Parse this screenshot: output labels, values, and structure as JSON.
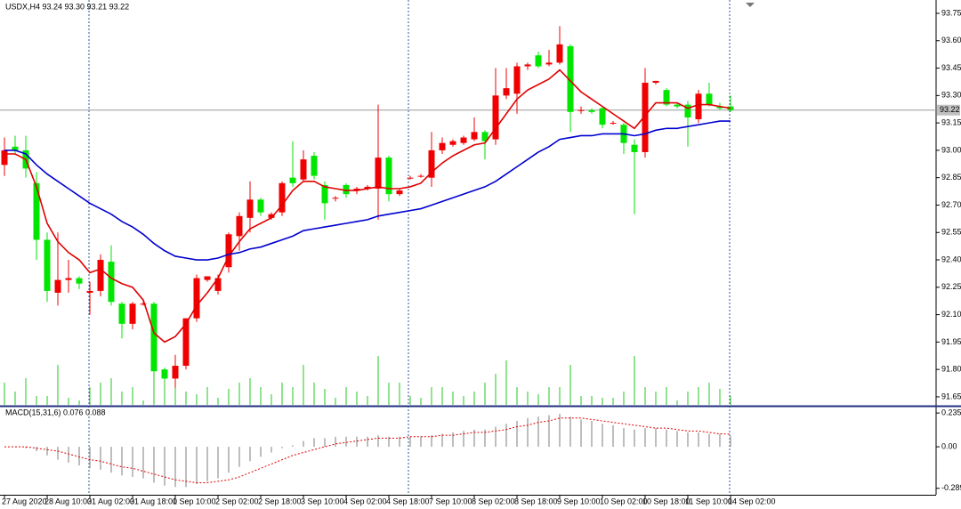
{
  "chart_data": {
    "type": "candlestick",
    "title": "USDX,H4  93.24 93.30 93.21 93.22",
    "categories": [
      "27 Aug 2020",
      null,
      null,
      null,
      "28 Aug 10:00",
      null,
      null,
      null,
      "31 Aug 02:00",
      null,
      null,
      null,
      "31 Aug 18:00",
      null,
      null,
      null,
      "1 Sep 10:00",
      null,
      null,
      null,
      "2 Sep 02:00",
      null,
      null,
      null,
      "2 Sep 18:00",
      null,
      null,
      null,
      "3 Sep 10:00",
      null,
      null,
      null,
      "4 Sep 02:00",
      null,
      null,
      null,
      "4 Sep 18:00",
      null,
      null,
      null,
      "7 Sep 10:00",
      null,
      null,
      null,
      "8 Sep 02:00",
      null,
      null,
      null,
      "8 Sep 18:00",
      null,
      null,
      null,
      "9 Sep 10:00",
      null,
      null,
      null,
      "10 Sep 02:00",
      null,
      null,
      null,
      "10 Sep 18:00",
      null,
      null,
      null,
      "11 Sep 10:00",
      null,
      null,
      null,
      "14 Sep 02:00"
    ],
    "open": [
      92.92,
      93.02,
      93.0,
      92.82,
      92.51,
      92.22,
      92.29,
      92.3,
      92.22,
      92.23,
      92.39,
      92.16,
      92.05,
      92.16,
      92.16,
      91.8,
      91.75,
      91.82,
      92.08,
      92.29,
      92.23,
      92.36,
      92.53,
      92.63,
      92.73,
      92.63,
      92.66,
      92.85,
      92.84,
      92.97,
      92.81,
      92.74,
      92.81,
      92.78,
      92.79,
      92.79,
      92.96,
      92.76,
      92.85,
      92.86,
      92.85,
      93.0,
      93.03,
      93.04,
      93.06,
      93.1,
      93.06,
      93.3,
      93.31,
      93.46,
      93.52,
      93.47,
      93.48,
      93.57,
      93.22,
      93.22,
      93.23,
      93.15,
      93.14,
      93.03,
      92.99,
      93.37,
      93.33,
      93.25,
      93.25,
      93.17,
      93.31,
      93.24,
      93.24
    ],
    "high": [
      93.07,
      93.08,
      93.08,
      92.88,
      92.55,
      92.55,
      92.4,
      92.31,
      92.28,
      92.43,
      92.48,
      92.17,
      92.17,
      92.17,
      92.17,
      91.81,
      91.88,
      92.08,
      92.32,
      92.31,
      92.32,
      92.55,
      92.66,
      92.83,
      92.74,
      92.66,
      92.83,
      93.05,
      93.0,
      92.99,
      92.83,
      92.75,
      92.82,
      92.8,
      92.81,
      93.25,
      92.97,
      92.79,
      92.86,
      92.87,
      93.1,
      93.07,
      93.06,
      93.08,
      93.18,
      93.11,
      93.45,
      93.45,
      93.48,
      93.48,
      93.54,
      93.55,
      93.68,
      93.58,
      93.24,
      93.23,
      93.24,
      93.16,
      93.15,
      93.06,
      93.45,
      93.38,
      93.34,
      93.26,
      93.27,
      93.33,
      93.37,
      93.26,
      93.3
    ],
    "low": [
      92.86,
      92.98,
      92.85,
      92.4,
      92.17,
      92.15,
      92.22,
      92.24,
      92.1,
      92.2,
      92.15,
      91.97,
      92.02,
      92.15,
      91.78,
      91.74,
      91.7,
      91.8,
      92.06,
      92.28,
      92.21,
      92.33,
      92.45,
      92.55,
      92.64,
      92.62,
      92.64,
      92.8,
      92.83,
      92.84,
      92.62,
      92.72,
      92.74,
      92.76,
      92.78,
      92.62,
      92.72,
      92.75,
      92.84,
      92.85,
      92.8,
      92.98,
      93.02,
      93.03,
      93.05,
      92.95,
      93.03,
      93.28,
      93.2,
      93.44,
      93.45,
      93.46,
      93.47,
      93.1,
      93.2,
      93.2,
      93.12,
      93.14,
      92.98,
      92.65,
      92.96,
      93.36,
      93.24,
      93.23,
      93.02,
      93.15,
      93.24,
      93.22,
      93.21
    ],
    "close": [
      93.0,
      93.0,
      92.9,
      92.51,
      92.23,
      92.29,
      92.3,
      92.27,
      92.23,
      92.4,
      92.17,
      92.05,
      92.16,
      92.16,
      91.79,
      91.75,
      91.82,
      92.08,
      92.3,
      92.31,
      92.3,
      92.54,
      92.64,
      92.73,
      92.66,
      92.65,
      92.82,
      92.82,
      92.95,
      92.86,
      92.71,
      92.74,
      92.76,
      92.79,
      92.8,
      92.96,
      92.76,
      92.78,
      92.85,
      92.86,
      93.0,
      93.04,
      93.05,
      93.07,
      93.1,
      93.05,
      93.3,
      93.34,
      93.46,
      93.47,
      93.46,
      93.48,
      93.58,
      93.21,
      93.22,
      93.21,
      93.14,
      93.15,
      93.04,
      92.99,
      93.37,
      93.38,
      93.25,
      93.24,
      93.18,
      93.31,
      93.25,
      93.23,
      93.22
    ],
    "up_color": "#f00000",
    "down_color": "#00e600",
    "series": [
      {
        "color": "#e00000",
        "values": [
          92.98,
          92.98,
          92.95,
          92.8,
          92.6,
          92.5,
          92.44,
          92.4,
          92.33,
          92.35,
          92.3,
          92.27,
          92.25,
          92.18,
          92.0,
          91.95,
          91.98,
          92.05,
          92.15,
          92.22,
          92.3,
          92.42,
          92.5,
          92.57,
          92.6,
          92.63,
          92.7,
          92.78,
          92.83,
          92.83,
          92.8,
          92.79,
          92.78,
          92.78,
          92.79,
          92.8,
          92.79,
          92.79,
          92.8,
          92.82,
          92.88,
          92.93,
          92.97,
          93.0,
          93.03,
          93.04,
          93.12,
          93.2,
          93.28,
          93.33,
          93.36,
          93.39,
          93.44,
          93.38,
          93.32,
          93.28,
          93.24,
          93.2,
          93.16,
          93.12,
          93.19,
          93.26,
          93.26,
          93.26,
          93.23,
          93.25,
          93.25,
          93.24,
          93.23
        ]
      },
      {
        "color": "#0000d0",
        "values": [
          93.0,
          93.0,
          92.98,
          92.92,
          92.87,
          92.83,
          92.79,
          92.75,
          92.71,
          92.68,
          92.65,
          92.61,
          92.58,
          92.54,
          92.49,
          92.45,
          92.42,
          92.41,
          92.4,
          92.4,
          92.41,
          92.43,
          92.44,
          92.46,
          92.47,
          92.49,
          92.51,
          92.53,
          92.56,
          92.57,
          92.58,
          92.59,
          92.6,
          92.61,
          92.62,
          92.64,
          92.65,
          92.66,
          92.67,
          92.68,
          92.7,
          92.72,
          92.74,
          92.76,
          92.78,
          92.8,
          92.83,
          92.87,
          92.91,
          92.95,
          92.99,
          93.02,
          93.06,
          93.07,
          93.08,
          93.08,
          93.09,
          93.09,
          93.09,
          93.08,
          93.09,
          93.11,
          93.12,
          93.12,
          93.13,
          93.14,
          93.15,
          93.16,
          93.16
        ]
      }
    ],
    "volume": {
      "color": "#22c822",
      "values": [
        25,
        15,
        30,
        10,
        10,
        45,
        8,
        5,
        20,
        25,
        30,
        15,
        20,
        5,
        45,
        30,
        45,
        15,
        12,
        20,
        8,
        18,
        25,
        30,
        20,
        12,
        25,
        20,
        45,
        25,
        18,
        8,
        20,
        15,
        10,
        55,
        25,
        25,
        10,
        8,
        20,
        20,
        15,
        10,
        15,
        25,
        35,
        50,
        20,
        15,
        12,
        20,
        20,
        45,
        10,
        10,
        8,
        8,
        15,
        55,
        20,
        15,
        20,
        5,
        15,
        20,
        25,
        18,
        10
      ]
    },
    "ylim": [
      91.601,
      93.823
    ],
    "yticks": [
      {
        "value": 91.65,
        "label": "91.65"
      },
      {
        "value": 91.8,
        "label": "91.80"
      },
      91.95,
      {
        "value": 92.1,
        "label": "92.10"
      },
      92.25,
      {
        "value": 92.4,
        "label": "92.40"
      },
      92.55,
      {
        "value": 92.7,
        "label": "92.70"
      },
      92.85,
      {
        "value": 93.0,
        "label": "93.00"
      },
      93.15,
      {
        "value": 93.3,
        "label": "93.30"
      },
      93.45,
      {
        "value": 93.6,
        "label": "93.60"
      },
      93.75
    ],
    "current_price": 93.22,
    "macd": {
      "title": "MACD(15,31,6) 0.076 0.088",
      "histogram_color": "#a8a8a8",
      "signal_color": "#e00000",
      "histogram": [
        0.0,
        0.0,
        -0.01,
        -0.03,
        -0.06,
        -0.09,
        -0.11,
        -0.13,
        -0.15,
        -0.16,
        -0.18,
        -0.2,
        -0.21,
        -0.22,
        -0.25,
        -0.27,
        -0.28,
        -0.28,
        -0.26,
        -0.24,
        -0.22,
        -0.18,
        -0.14,
        -0.1,
        -0.07,
        -0.04,
        -0.01,
        0.01,
        0.04,
        0.06,
        0.06,
        0.07,
        0.07,
        0.07,
        0.07,
        0.08,
        0.07,
        0.07,
        0.07,
        0.07,
        0.08,
        0.09,
        0.1,
        0.11,
        0.12,
        0.12,
        0.14,
        0.16,
        0.18,
        0.2,
        0.21,
        0.22,
        0.23,
        0.21,
        0.19,
        0.18,
        0.16,
        0.15,
        0.13,
        0.12,
        0.13,
        0.13,
        0.12,
        0.11,
        0.1,
        0.1,
        0.09,
        0.09,
        0.076
      ],
      "signal": [
        0.0,
        0.0,
        0.0,
        -0.01,
        -0.02,
        -0.03,
        -0.05,
        -0.07,
        -0.09,
        -0.1,
        -0.12,
        -0.14,
        -0.15,
        -0.17,
        -0.19,
        -0.21,
        -0.23,
        -0.24,
        -0.25,
        -0.25,
        -0.24,
        -0.23,
        -0.21,
        -0.18,
        -0.15,
        -0.12,
        -0.09,
        -0.06,
        -0.04,
        -0.02,
        0.0,
        0.02,
        0.03,
        0.04,
        0.05,
        0.06,
        0.06,
        0.06,
        0.07,
        0.07,
        0.07,
        0.08,
        0.08,
        0.09,
        0.1,
        0.1,
        0.11,
        0.12,
        0.14,
        0.15,
        0.17,
        0.18,
        0.2,
        0.2,
        0.2,
        0.19,
        0.18,
        0.17,
        0.16,
        0.15,
        0.14,
        0.13,
        0.13,
        0.12,
        0.11,
        0.11,
        0.1,
        0.09,
        0.088
      ],
      "ylim": [
        -0.334,
        0.273
      ],
      "yticks": [
        0.235,
        {
          "value": 0,
          "label": "0.00"
        },
        -0.289
      ]
    }
  }
}
